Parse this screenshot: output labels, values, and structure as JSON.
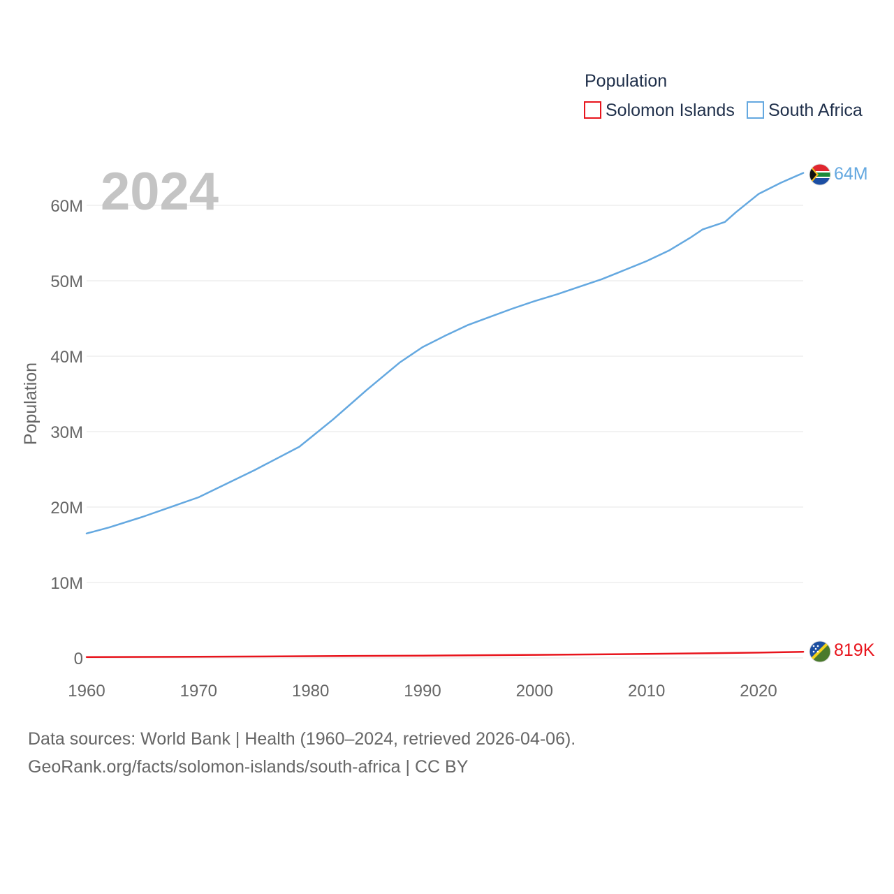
{
  "chart_data": {
    "type": "line",
    "title": "Population",
    "ylabel": "Population",
    "xlabel": "",
    "year_label": "2024",
    "x_ticks": [
      1960,
      1970,
      1980,
      1990,
      2000,
      2010,
      2020
    ],
    "x_tick_labels": [
      "1960",
      "1970",
      "1980",
      "1990",
      "2000",
      "2010",
      "2020"
    ],
    "y_ticks": [
      0,
      10000000,
      20000000,
      30000000,
      40000000,
      50000000,
      60000000
    ],
    "y_tick_labels": [
      "0",
      "10M",
      "20M",
      "30M",
      "40M",
      "50M",
      "60M"
    ],
    "xlim": [
      1960,
      2024
    ],
    "ylim": [
      0,
      65000000
    ],
    "legend_title": "Population",
    "series": [
      {
        "name": "Solomon Islands",
        "color": "#e8141c",
        "end_label": "819K",
        "flag": "solomon-islands-flag-icon",
        "points": [
          [
            1960,
            120000
          ],
          [
            1970,
            160000
          ],
          [
            1980,
            230000
          ],
          [
            1990,
            310000
          ],
          [
            2000,
            410000
          ],
          [
            2010,
            530000
          ],
          [
            2020,
            700000
          ],
          [
            2024,
            819000
          ]
        ]
      },
      {
        "name": "South Africa",
        "color": "#64a8e0",
        "end_label": "64M",
        "flag": "south-africa-flag-icon",
        "points": [
          [
            1960,
            16500000
          ],
          [
            1962,
            17300000
          ],
          [
            1965,
            18700000
          ],
          [
            1970,
            21300000
          ],
          [
            1975,
            24900000
          ],
          [
            1979,
            28000000
          ],
          [
            1980,
            29200000
          ],
          [
            1982,
            31600000
          ],
          [
            1985,
            35500000
          ],
          [
            1988,
            39200000
          ],
          [
            1990,
            41200000
          ],
          [
            1992,
            42700000
          ],
          [
            1994,
            44100000
          ],
          [
            1996,
            45200000
          ],
          [
            1998,
            46300000
          ],
          [
            2000,
            47300000
          ],
          [
            2002,
            48200000
          ],
          [
            2004,
            49200000
          ],
          [
            2006,
            50200000
          ],
          [
            2008,
            51400000
          ],
          [
            2010,
            52600000
          ],
          [
            2012,
            54000000
          ],
          [
            2014,
            55800000
          ],
          [
            2015,
            56800000
          ],
          [
            2017,
            57800000
          ],
          [
            2018,
            59100000
          ],
          [
            2020,
            61500000
          ],
          [
            2022,
            63000000
          ],
          [
            2024,
            64300000
          ]
        ]
      }
    ]
  },
  "footer": {
    "source_line": "Data sources: World Bank | Health (1960–2024, retrieved 2026-04-06).",
    "url_line": "GeoRank.org/facts/solomon-islands/south-africa | CC BY"
  }
}
